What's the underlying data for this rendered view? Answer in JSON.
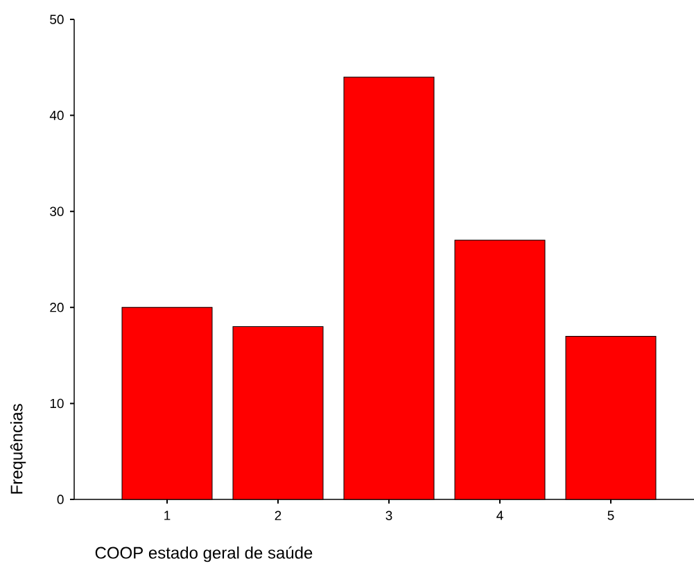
{
  "chart_data": {
    "type": "bar",
    "xlabel": "COOP estado geral de saúde",
    "ylabel": "Frequências",
    "categories": [
      "1",
      "2",
      "3",
      "4",
      "5"
    ],
    "values": [
      20,
      18,
      44,
      27,
      17
    ],
    "color": "#ff0000",
    "ylim": [
      0,
      50
    ],
    "yticks": [
      0,
      10,
      20,
      30,
      40,
      50
    ]
  }
}
